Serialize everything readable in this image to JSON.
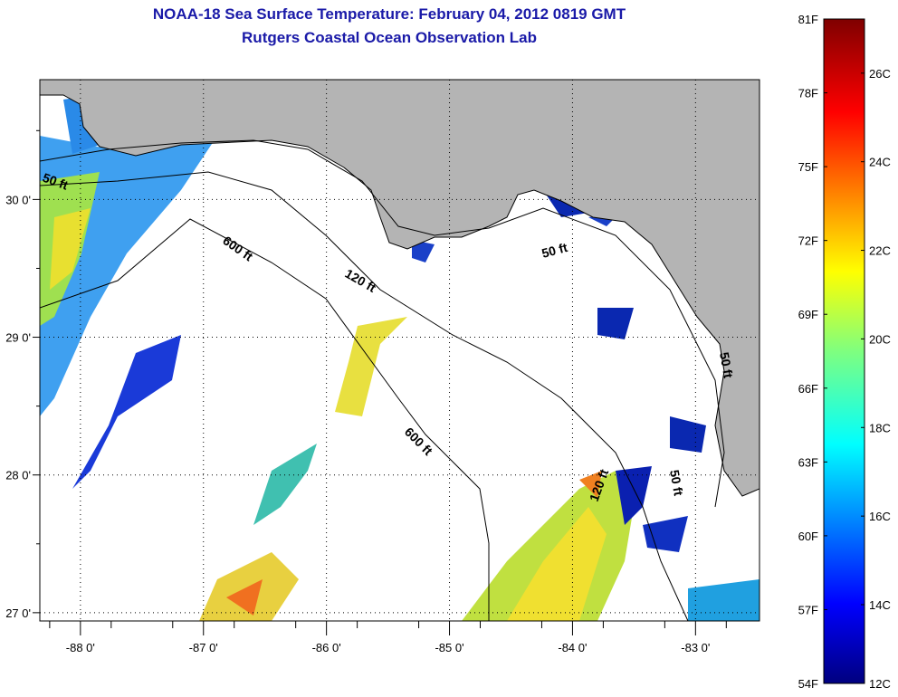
{
  "header": {
    "title": "NOAA-18 Sea Surface Temperature:  February 04, 2012 0819 GMT",
    "subtitle": "Rutgers Coastal Ocean Observation Lab"
  },
  "chart_data": {
    "type": "heatmap",
    "title": "NOAA-18 Sea Surface Temperature:  February 04, 2012 0819 GMT",
    "subtitle": "Rutgers Coastal Ocean Observation Lab",
    "xlim": [
      -88.33,
      -82.48
    ],
    "ylim": [
      26.94,
      30.87
    ],
    "x_ticks": [
      {
        "value": -88,
        "label": "-88 0'"
      },
      {
        "value": -87,
        "label": "-87 0'"
      },
      {
        "value": -86,
        "label": "-86 0'"
      },
      {
        "value": -85,
        "label": "-85 0'"
      },
      {
        "value": -84,
        "label": "-84 0'"
      },
      {
        "value": -83,
        "label": "-83 0'"
      }
    ],
    "y_ticks": [
      {
        "value": 30,
        "label": "30 0'"
      },
      {
        "value": 29,
        "label": "29 0'"
      },
      {
        "value": 28,
        "label": "28 0'"
      },
      {
        "value": 27,
        "label": "27 0'"
      }
    ],
    "grid": "dotted",
    "contour_labels": [
      "50 ft",
      "600 ft",
      "120 ft",
      "50 ft",
      "600 ft",
      "120 ft",
      "50 ft",
      "50 ft"
    ],
    "colorbar": {
      "range_f": [
        54,
        81
      ],
      "f_ticks": [
        {
          "value": 54,
          "label": "54F"
        },
        {
          "value": 57,
          "label": "57F"
        },
        {
          "value": 60,
          "label": "60F"
        },
        {
          "value": 63,
          "label": "63F"
        },
        {
          "value": 66,
          "label": "66F"
        },
        {
          "value": 69,
          "label": "69F"
        },
        {
          "value": 72,
          "label": "72F"
        },
        {
          "value": 75,
          "label": "75F"
        },
        {
          "value": 78,
          "label": "78F"
        },
        {
          "value": 81,
          "label": "81F"
        }
      ],
      "c_ticks": [
        {
          "value": 12,
          "label": "12C"
        },
        {
          "value": 14,
          "label": "14C"
        },
        {
          "value": 16,
          "label": "16C"
        },
        {
          "value": 18,
          "label": "18C"
        },
        {
          "value": 20,
          "label": "20C"
        },
        {
          "value": 22,
          "label": "22C"
        },
        {
          "value": 24,
          "label": "24C"
        },
        {
          "value": 26,
          "label": "26C"
        }
      ]
    },
    "colors": {
      "land": "#b4b4b4",
      "ocean_nodata": "#ffffff",
      "title": "#1a1aa8"
    }
  }
}
